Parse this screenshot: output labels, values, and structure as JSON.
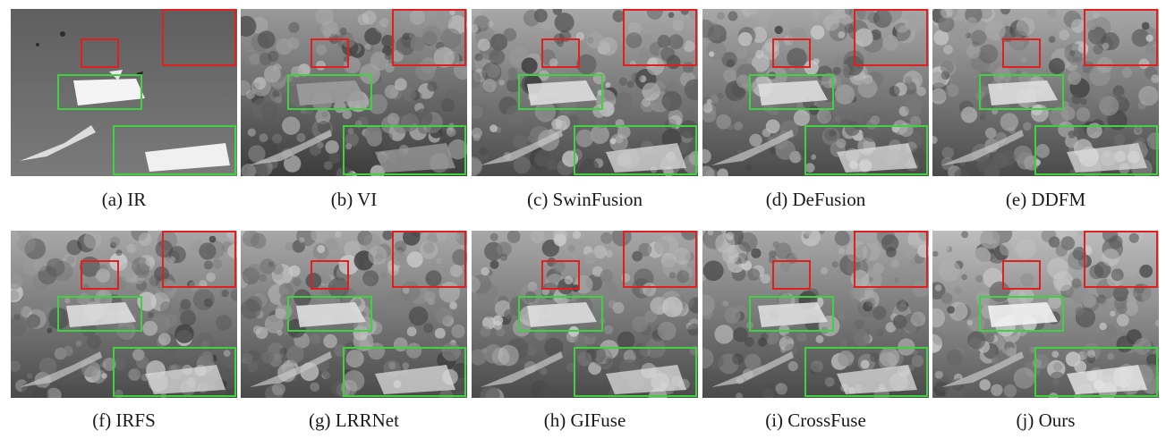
{
  "figure": {
    "panels": [
      {
        "label": "(a) IR",
        "kind": "ir"
      },
      {
        "label": "(b) VI",
        "kind": "vi"
      },
      {
        "label": "(c) SwinFusion",
        "kind": "fused"
      },
      {
        "label": "(d) DeFusion",
        "kind": "fused"
      },
      {
        "label": "(e) DDFM",
        "kind": "fused"
      },
      {
        "label": "(f) IRFS",
        "kind": "fused"
      },
      {
        "label": "(g) LRRNet",
        "kind": "fused"
      },
      {
        "label": "(h) GIFuse",
        "kind": "fused"
      },
      {
        "label": "(i) CrossFuse",
        "kind": "fused"
      },
      {
        "label": "(j) Ours",
        "kind": "ours"
      }
    ],
    "colors": {
      "highlight_box_red": "#e21f1f",
      "highlight_box_green": "#3fd23f",
      "caption_text": "#1a1a1a"
    }
  }
}
